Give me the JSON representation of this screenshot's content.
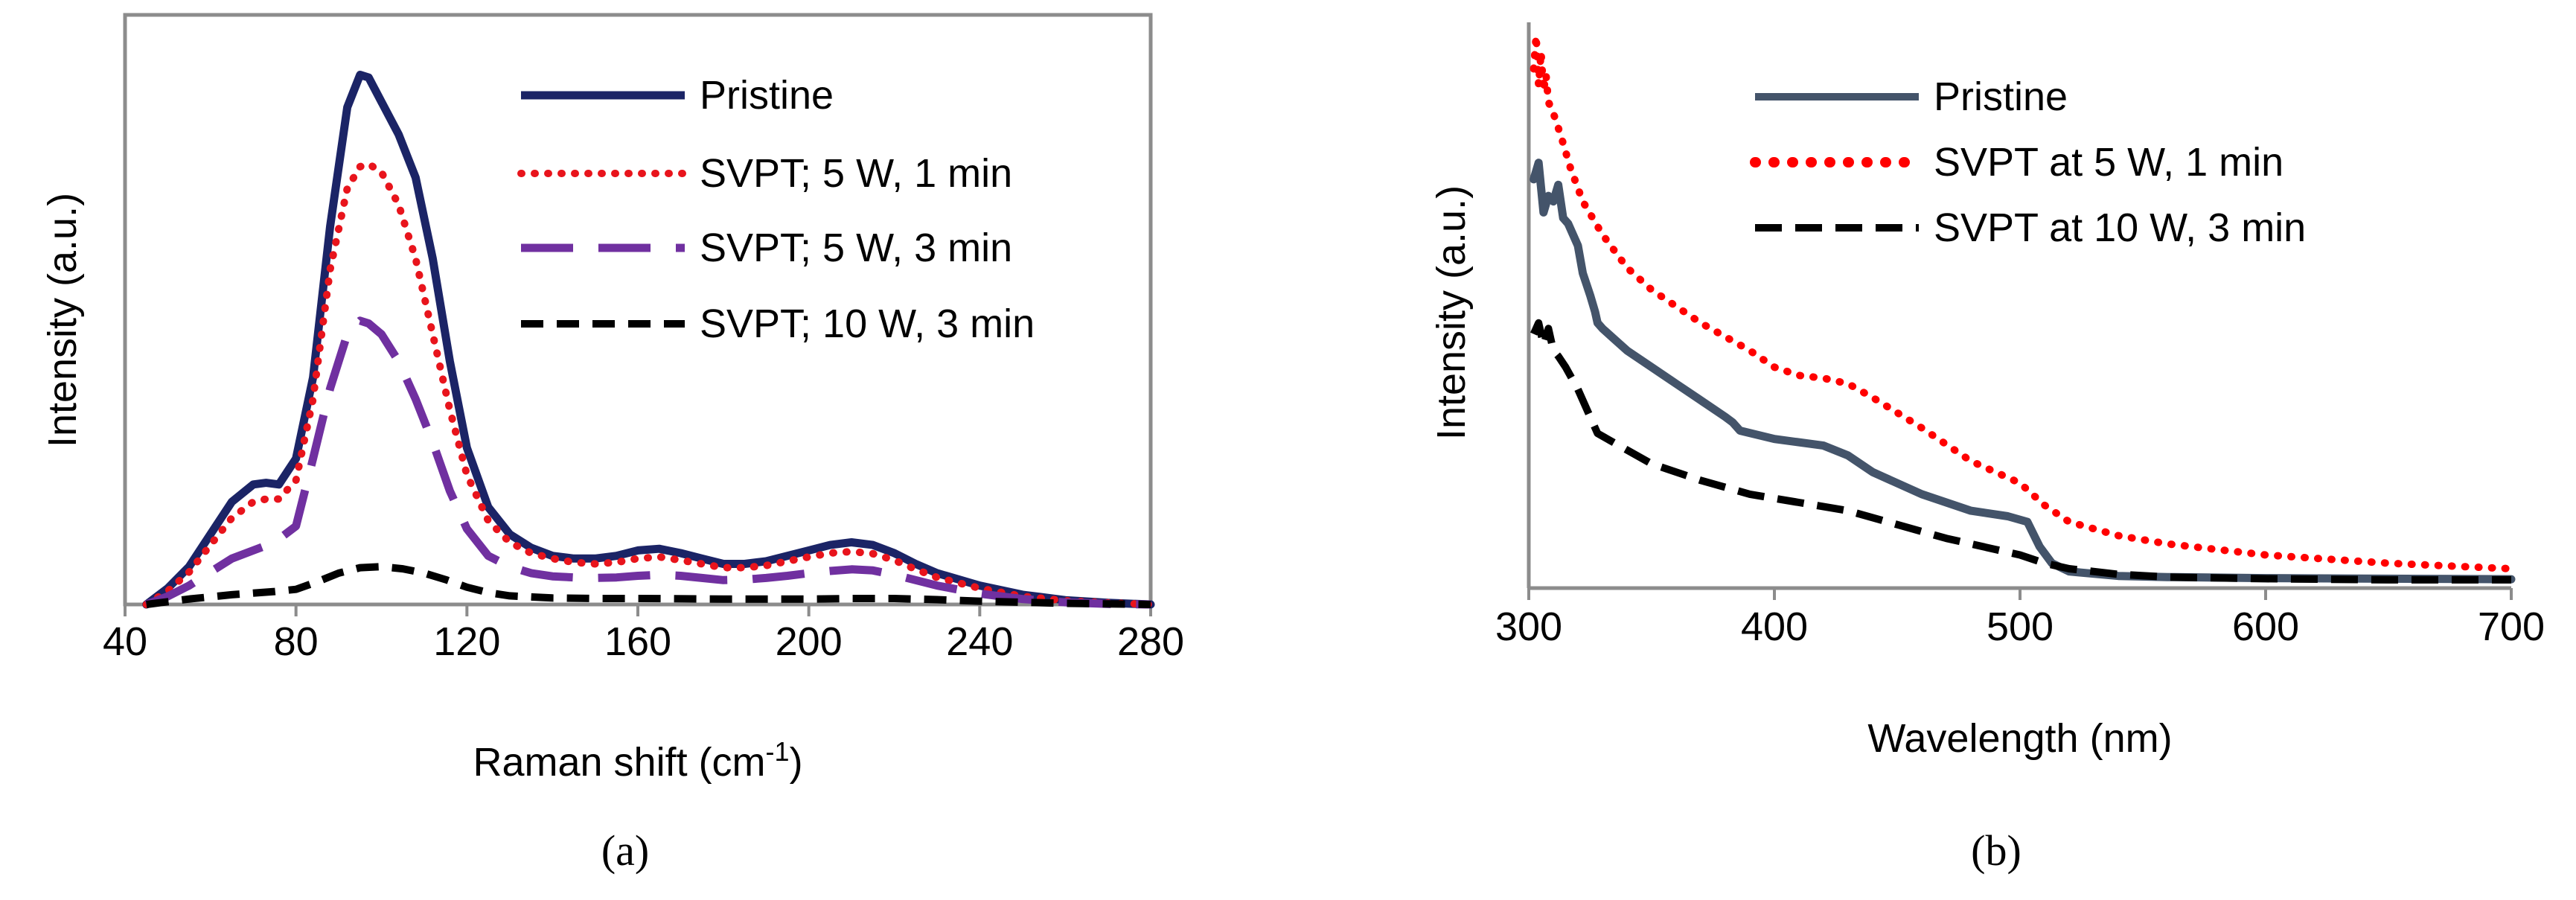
{
  "chart_data": [
    {
      "panel": "a",
      "panel_label": "(a)",
      "type": "line",
      "xlabel": "Raman shift (cm",
      "xlabel_sup": "-1",
      "xlabel_end": ")",
      "ylabel": "Intensity (a.u.)",
      "xlim": [
        40,
        280
      ],
      "ylim": [
        0,
        1
      ],
      "xticks": [
        40,
        80,
        120,
        160,
        200,
        240,
        280
      ],
      "yticks": [],
      "grid": false,
      "legend_position": "top-right",
      "series": [
        {
          "name": "Pristine",
          "color": "#1b2466",
          "style": "solid",
          "x": [
            45,
            50,
            55,
            60,
            65,
            70,
            73,
            76,
            80,
            84,
            88,
            92,
            95,
            97,
            100,
            104,
            108,
            112,
            116,
            120,
            125,
            130,
            135,
            140,
            145,
            150,
            155,
            160,
            165,
            170,
            175,
            180,
            185,
            190,
            195,
            200,
            205,
            210,
            215,
            220,
            225,
            230,
            240,
            250,
            260,
            270,
            280
          ],
          "y": [
            0.0,
            0.03,
            0.07,
            0.13,
            0.19,
            0.222,
            0.225,
            0.222,
            0.27,
            0.42,
            0.7,
            0.92,
            0.98,
            0.975,
            0.93,
            0.87,
            0.79,
            0.64,
            0.45,
            0.29,
            0.18,
            0.13,
            0.105,
            0.09,
            0.085,
            0.085,
            0.09,
            0.1,
            0.103,
            0.095,
            0.085,
            0.075,
            0.075,
            0.08,
            0.09,
            0.1,
            0.11,
            0.115,
            0.11,
            0.095,
            0.075,
            0.058,
            0.035,
            0.018,
            0.008,
            0.003,
            0.0
          ]
        },
        {
          "name": "SVPT; 5 W, 1 min",
          "color": "#e8141c",
          "style": "dotted",
          "x": [
            45,
            50,
            55,
            60,
            65,
            70,
            73,
            76,
            80,
            84,
            88,
            92,
            95,
            97,
            100,
            104,
            108,
            112,
            116,
            120,
            125,
            130,
            135,
            140,
            145,
            150,
            155,
            160,
            165,
            170,
            175,
            180,
            185,
            190,
            195,
            200,
            205,
            210,
            215,
            220,
            225,
            230,
            240,
            250,
            260,
            270,
            280
          ],
          "y": [
            0.0,
            0.025,
            0.06,
            0.11,
            0.16,
            0.19,
            0.195,
            0.195,
            0.23,
            0.38,
            0.62,
            0.77,
            0.81,
            0.815,
            0.8,
            0.74,
            0.64,
            0.5,
            0.36,
            0.24,
            0.155,
            0.115,
            0.095,
            0.085,
            0.078,
            0.075,
            0.078,
            0.085,
            0.088,
            0.082,
            0.075,
            0.068,
            0.068,
            0.072,
            0.08,
            0.088,
            0.095,
            0.098,
            0.094,
            0.082,
            0.065,
            0.05,
            0.03,
            0.015,
            0.007,
            0.003,
            0.0
          ]
        },
        {
          "name": "SVPT; 5 W, 3 min",
          "color": "#7030a0",
          "style": "long-dash",
          "x": [
            45,
            50,
            55,
            60,
            65,
            70,
            75,
            80,
            84,
            88,
            92,
            95,
            97,
            100,
            104,
            108,
            112,
            116,
            120,
            125,
            130,
            135,
            140,
            145,
            150,
            155,
            160,
            165,
            170,
            175,
            180,
            185,
            190,
            195,
            200,
            205,
            210,
            215,
            220,
            225,
            230,
            240,
            250,
            260,
            270,
            280
          ],
          "y": [
            0.0,
            0.015,
            0.035,
            0.06,
            0.085,
            0.1,
            0.115,
            0.145,
            0.27,
            0.4,
            0.5,
            0.525,
            0.52,
            0.5,
            0.45,
            0.38,
            0.3,
            0.21,
            0.14,
            0.09,
            0.07,
            0.058,
            0.052,
            0.05,
            0.049,
            0.05,
            0.053,
            0.055,
            0.053,
            0.049,
            0.045,
            0.046,
            0.049,
            0.053,
            0.058,
            0.062,
            0.065,
            0.063,
            0.055,
            0.045,
            0.035,
            0.02,
            0.01,
            0.004,
            0.001,
            0.0
          ]
        },
        {
          "name": "SVPT; 10 W, 3 min",
          "color": "#000000",
          "style": "short-dash",
          "x": [
            45,
            55,
            65,
            75,
            80,
            85,
            90,
            95,
            100,
            105,
            110,
            115,
            120,
            125,
            130,
            140,
            150,
            160,
            180,
            200,
            210,
            220,
            230,
            240,
            260,
            280
          ],
          "y": [
            0.0,
            0.01,
            0.018,
            0.024,
            0.028,
            0.042,
            0.058,
            0.068,
            0.07,
            0.066,
            0.058,
            0.046,
            0.032,
            0.022,
            0.016,
            0.012,
            0.011,
            0.011,
            0.01,
            0.01,
            0.011,
            0.011,
            0.009,
            0.006,
            0.002,
            0.0
          ]
        }
      ]
    },
    {
      "panel": "b",
      "panel_label": "(b)",
      "type": "line",
      "xlabel": "Wavelength (nm)",
      "ylabel": "Intensity (a.u.)",
      "xlim": [
        300,
        700
      ],
      "ylim": [
        0,
        1
      ],
      "xticks": [
        300,
        400,
        500,
        600,
        700
      ],
      "yticks": [],
      "grid": false,
      "legend_position": "top-right",
      "series": [
        {
          "name": "Pristine",
          "color": "#44546a",
          "style": "solid",
          "x": [
            302,
            304,
            306,
            308,
            310,
            312,
            314,
            316,
            318,
            320,
            322,
            325,
            327,
            328,
            330,
            335,
            340,
            350,
            360,
            370,
            380,
            383,
            386,
            400,
            420,
            430,
            440,
            460,
            480,
            495,
            503,
            508,
            513,
            520,
            540,
            560,
            600,
            650,
            700
          ],
          "y": [
            0.74,
            0.77,
            0.68,
            0.71,
            0.7,
            0.73,
            0.67,
            0.66,
            0.64,
            0.62,
            0.57,
            0.53,
            0.5,
            0.48,
            0.47,
            0.45,
            0.43,
            0.4,
            0.37,
            0.34,
            0.31,
            0.3,
            0.285,
            0.27,
            0.258,
            0.24,
            0.21,
            0.17,
            0.14,
            0.13,
            0.12,
            0.075,
            0.045,
            0.03,
            0.022,
            0.02,
            0.018,
            0.017,
            0.016
          ]
        },
        {
          "name": "SVPT at 5 W, 1 min",
          "color": "#ff0000",
          "style": "dotted",
          "x": [
            302,
            303,
            304,
            305,
            306,
            307,
            308,
            310,
            313,
            317,
            322,
            330,
            340,
            350,
            370,
            390,
            400,
            410,
            420,
            430,
            440,
            460,
            480,
            500,
            510,
            520,
            540,
            560,
            600,
            650,
            700
          ],
          "y": [
            0.94,
            1.0,
            0.91,
            0.97,
            0.9,
            0.93,
            0.88,
            0.86,
            0.82,
            0.76,
            0.7,
            0.64,
            0.58,
            0.54,
            0.48,
            0.43,
            0.4,
            0.385,
            0.38,
            0.37,
            0.345,
            0.29,
            0.23,
            0.19,
            0.15,
            0.12,
            0.095,
            0.08,
            0.06,
            0.045,
            0.035
          ]
        },
        {
          "name": "SVPT at 10 W, 3 min",
          "color": "#000000",
          "style": "dashed",
          "x": [
            302,
            304,
            306,
            308,
            310,
            312,
            315,
            320,
            325,
            328,
            332,
            340,
            350,
            370,
            390,
            410,
            430,
            450,
            470,
            490,
            500,
            510,
            520,
            540,
            560,
            600,
            650,
            700
          ],
          "y": [
            0.46,
            0.48,
            0.44,
            0.47,
            0.43,
            0.42,
            0.4,
            0.36,
            0.31,
            0.28,
            0.27,
            0.25,
            0.225,
            0.195,
            0.17,
            0.155,
            0.14,
            0.115,
            0.09,
            0.07,
            0.06,
            0.045,
            0.035,
            0.025,
            0.02,
            0.017,
            0.015,
            0.015
          ]
        }
      ]
    }
  ]
}
